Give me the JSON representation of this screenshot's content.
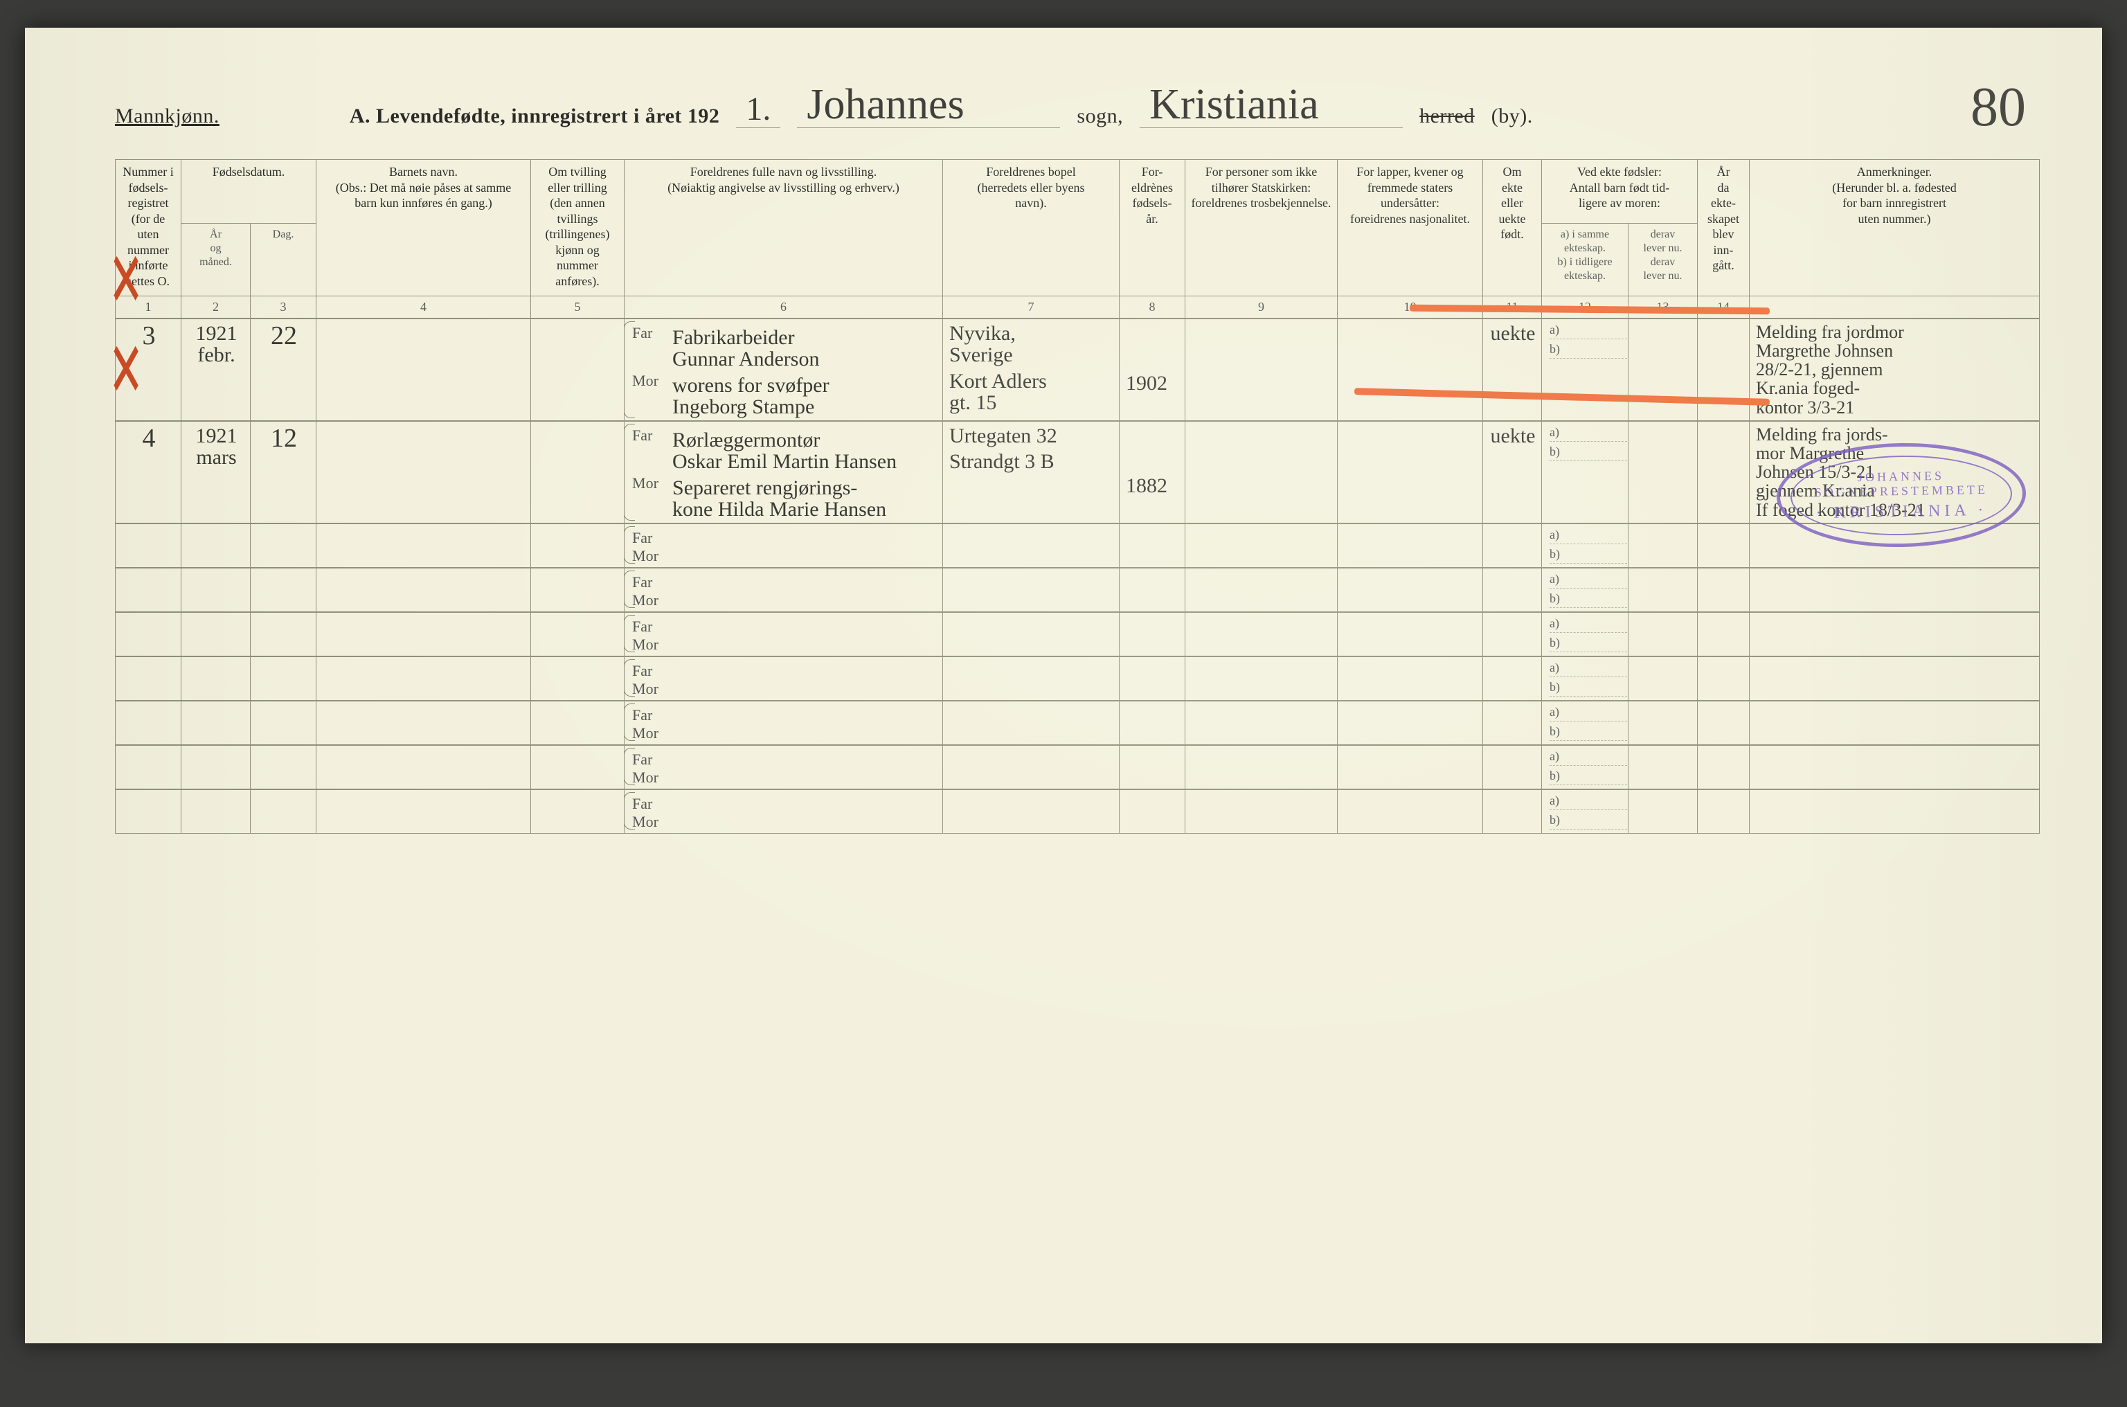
{
  "page": {
    "background": "#f3f1dd",
    "border_color": "#8f8f7a",
    "handwriting_color": "#3a3a34",
    "stamp_color": "#7d5ec2",
    "red": "#ef7a4a",
    "page_number": "80"
  },
  "header": {
    "mannkjonn": "Mannkjønn.",
    "title_printed_prefix": "A.   Levendefødte, innregistrert i året 192",
    "year_suffix_hand": "1.",
    "sogn_label": " sogn,",
    "sogn_hand": "Johannes",
    "by_hand": "Kristiania",
    "herred_struck": "herred",
    "by_suffix": "(by)."
  },
  "columns": {
    "c1": "Nummer i fødsels-\nregistret\n(for de\nuten\nnummer\ninnførte\nsettes O.",
    "c2_top": "Fødselsdatum.",
    "c2_a": "År\nog\nmåned.",
    "c2_b": "Dag.",
    "c4": "Barnets navn.\n(Obs.: Det må nøie påses at samme\nbarn kun innføres én gang.)",
    "c5": "Om tvilling\neller trilling\n(den annen\ntvillings\n(trillingenes)\nkjønn og\nnummer\nanføres).",
    "c6": "Foreldrenes fulle navn og livsstilling.\n(Nøiaktig angivelse av livsstilling og erhverv.)",
    "c7": "Foreldrenes bopel\n(herredets eller byens\nnavn).",
    "c8": "For-\neldrènes\nfødsels-\når.",
    "c9": "For personer som ikke\ntilhører Statskirken:\nforeldrenes trosbekjennelse.",
    "c10": "For lapper, kvener og\nfremmede staters\nundersåtter:\nforeidrenes nasjonalitet.",
    "c11": "Om\nekte\neller\nuekte\nfødt.",
    "c12_top": "Ved ekte fødsler:\nAntall barn født tid-\nligere av moren:",
    "c12_a": "a) i samme\nekteskap.",
    "c12_b": "derav\nlever nu.",
    "c13_a": "b) i tidligere\nekteskap.",
    "c13_b": "derav\nlever nu.",
    "c14": "År\nda\nekte-\nskapet\nblev\ninn-\ngått.",
    "c15": "Anmerkninger.\n(Herunder bl. a. fødested\nfor barn innregistrert\nuten nummer.)"
  },
  "colnums": [
    "1",
    "2",
    "3",
    "4",
    "5",
    "6",
    "7",
    "8",
    "9",
    "10",
    "11",
    "12",
    "13",
    "14"
  ],
  "far": "Far",
  "mor": "Mor",
  "ab": {
    "a": "a)",
    "b": "b)"
  },
  "rows": [
    {
      "num": "3",
      "ym": "1921\nfebr.",
      "day": "22",
      "far_line": "Fabrikarbeider\nGunnar Anderson",
      "mor_line": "worens for svøfper\nIngeborg Stampe",
      "bopel_far": "Nyvika,\nSverige",
      "bopel_mor": "Kort Adlers\ngt. 15",
      "year": "1902",
      "ekte": "uekte",
      "anm": "Melding fra jordmor\nMargrethe Johnsen\n28/2-21, gjennem\nKr.ania foged-\nkontor 3/3-21"
    },
    {
      "num": "4",
      "ym": "1921\nmars",
      "day": "12",
      "far_line": "Rørlæggermontør\nOskar Emil Martin Hansen",
      "mor_line": "Separeret rengjørings-\nkone Hilda Marie Hansen",
      "bopel_far": "Urtegaten 32",
      "bopel_mor": "Strandgt 3 B",
      "year": "1882",
      "ekte": "uekte",
      "anm": "Melding fra jords-\nmor Margrethe\nJohnsen 15/3-21\ngjennem Kr.ania\nIf foged kontor 18/3-21"
    }
  ],
  "stamp": {
    "top": "JOHANNES SOGNEPRESTEMBETE",
    "bottom": "· KRISTIANIA ·"
  },
  "empty_rows": 7
}
